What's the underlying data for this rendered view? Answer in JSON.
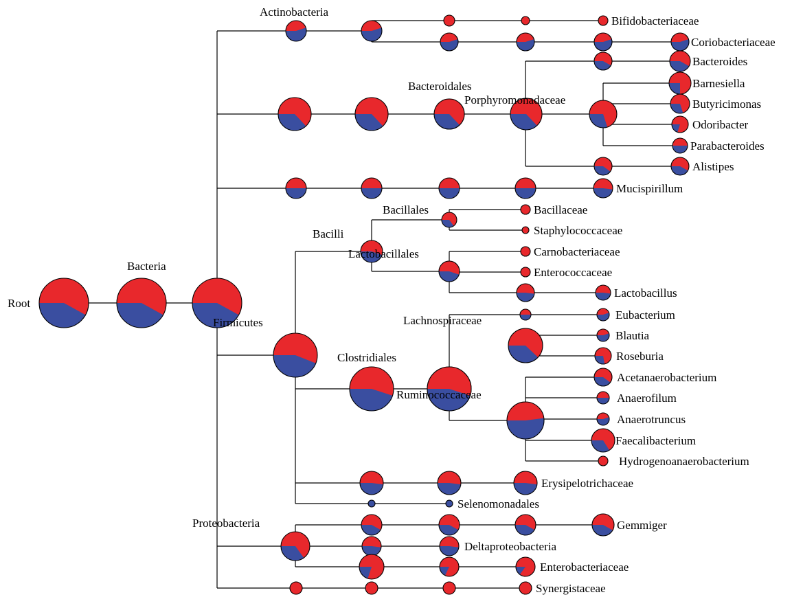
{
  "colors": {
    "primary": "#e8282c",
    "secondary": "#3a4ea0",
    "line": "#000000"
  },
  "nodes": [
    {
      "id": "root",
      "label": "Root",
      "share": 0.58
    },
    {
      "id": "bacteria",
      "label": "Bacteria",
      "share": 0.58
    },
    {
      "id": "phylum-hub",
      "label": "",
      "share": 0.58
    },
    {
      "id": "actino",
      "label": "Actinobacteria",
      "share": 0.45
    },
    {
      "id": "actino-2",
      "label": "",
      "share": 0.45
    },
    {
      "id": "bifido-1",
      "label": "",
      "share": 1.0
    },
    {
      "id": "bifido-2",
      "label": "",
      "share": 1.0
    },
    {
      "id": "bifidobacteriaceae",
      "label": "Bifidobacteriaceae",
      "share": 1.0
    },
    {
      "id": "corio-1",
      "label": "",
      "share": 0.45
    },
    {
      "id": "corio-2",
      "label": "",
      "share": 0.45
    },
    {
      "id": "corio-3",
      "label": "",
      "share": 0.45
    },
    {
      "id": "coriobacteriaceae",
      "label": "Coriobacteriaceae",
      "share": 0.45
    },
    {
      "id": "bacteroidetes",
      "label": "",
      "share": 0.63
    },
    {
      "id": "bacteroidia",
      "label": "",
      "share": 0.63
    },
    {
      "id": "bacteroidales",
      "label": "Bacteroidales",
      "share": 0.63
    },
    {
      "id": "porphyromonadaceae",
      "label": "Porphyromonadaceae",
      "share": 0.63
    },
    {
      "id": "bacteroides-1",
      "label": "",
      "share": 0.58
    },
    {
      "id": "bacteroides",
      "label": "Bacteroides",
      "share": 0.58
    },
    {
      "id": "porph-genus-hub",
      "label": "",
      "share": 0.7
    },
    {
      "id": "barnesiella",
      "label": "Barnesiella",
      "share": 0.75
    },
    {
      "id": "butyricimonas",
      "label": "Butyricimonas",
      "share": 0.7
    },
    {
      "id": "odoribacter",
      "label": "Odoribacter",
      "share": 0.8
    },
    {
      "id": "parabacteroides",
      "label": "Parabacteroides",
      "share": 0.5
    },
    {
      "id": "alistipes-1",
      "label": "",
      "share": 0.6
    },
    {
      "id": "alistipes",
      "label": "Alistipes",
      "share": 0.58
    },
    {
      "id": "deferri-1",
      "label": "",
      "share": 0.5
    },
    {
      "id": "deferri-2",
      "label": "",
      "share": 0.5
    },
    {
      "id": "deferri-3",
      "label": "",
      "share": 0.5
    },
    {
      "id": "deferri-4",
      "label": "",
      "share": 0.5
    },
    {
      "id": "mucispirillum",
      "label": "Mucispirillum",
      "share": 0.52
    },
    {
      "id": "firmicutes",
      "label": "Firmicutes",
      "share": 0.56
    },
    {
      "id": "bacilli",
      "label": "Bacilli",
      "share": 0.55
    },
    {
      "id": "bacillales",
      "label": "Bacillales",
      "share": 0.65
    },
    {
      "id": "bacillaceae",
      "label": "Bacillaceae",
      "share": 1.0
    },
    {
      "id": "staphylococcaceae",
      "label": "Staphylococcaceae",
      "share": 1.0
    },
    {
      "id": "lactobacillales",
      "label": "Lactobacillales",
      "share": 0.55
    },
    {
      "id": "carnobacteriaceae",
      "label": "Carnobacteriaceae",
      "share": 1.0
    },
    {
      "id": "enterococcaceae",
      "label": "Enterococcaceae",
      "share": 1.0
    },
    {
      "id": "lactobacillaceae",
      "label": "",
      "share": 0.52
    },
    {
      "id": "lactobacillus",
      "label": "Lactobacillus",
      "share": 0.52
    },
    {
      "id": "clostridia",
      "label": "",
      "share": 0.55
    },
    {
      "id": "clostridiales",
      "label": "Clostridiales",
      "share": 0.55
    },
    {
      "id": "clostridiales-hub",
      "label": "Ruminococcaceae",
      "share": 0.55
    },
    {
      "id": "lachnospiraceae-node",
      "label": "Lachnospiraceae",
      "share": 0.5
    },
    {
      "id": "eubacterium",
      "label": "Eubacterium",
      "share": 0.45
    },
    {
      "id": "lachno-genus-hub",
      "label": "",
      "share": 0.62
    },
    {
      "id": "blautia",
      "label": "Blautia",
      "share": 0.45
    },
    {
      "id": "roseburia",
      "label": "Roseburia",
      "share": 0.72
    },
    {
      "id": "rumino-genus-hub",
      "label": "",
      "share": 0.48
    },
    {
      "id": "acetanaerobacterium",
      "label": "Acetanaerobacterium",
      "share": 0.6
    },
    {
      "id": "anaerofilum",
      "label": "Anaerofilum",
      "share": 0.5
    },
    {
      "id": "anaerotruncus",
      "label": "Anaerotruncus",
      "share": 0.45
    },
    {
      "id": "faecalibacterium",
      "label": "Faecalibacterium",
      "share": 0.66
    },
    {
      "id": "hydrogenoanaerobacterium",
      "label": "Hydrogenoanaerobacterium",
      "share": 1.0
    },
    {
      "id": "erysip-1",
      "label": "",
      "share": 0.52
    },
    {
      "id": "erysip-2",
      "label": "",
      "share": 0.52
    },
    {
      "id": "erysipelotrichaceae",
      "label": "Erysipelotrichaceae",
      "share": 0.52
    },
    {
      "id": "seleno-1",
      "label": "",
      "share": 0.0
    },
    {
      "id": "selenomonadales",
      "label": "Selenomonadales",
      "share": 0.0
    },
    {
      "id": "proteobacteria",
      "label": "Proteobacteria",
      "share": 0.65
    },
    {
      "id": "gemmiger-1",
      "label": "",
      "share": 0.58
    },
    {
      "id": "gemmiger-2",
      "label": "",
      "share": 0.58
    },
    {
      "id": "gemmiger-3",
      "label": "",
      "share": 0.58
    },
    {
      "id": "gemmiger",
      "label": "Gemmiger",
      "share": 0.58
    },
    {
      "id": "delta-1",
      "label": "",
      "share": 0.52
    },
    {
      "id": "deltaproteobacteria",
      "label": "Deltaproteobacteria",
      "share": 0.52
    },
    {
      "id": "entero-1",
      "label": "",
      "share": 0.8
    },
    {
      "id": "entero-2",
      "label": "",
      "share": 0.82
    },
    {
      "id": "enterobacteriaceae",
      "label": "Enterobacteriaceae",
      "share": 0.85
    },
    {
      "id": "synergistetes",
      "label": "",
      "share": 1.0
    },
    {
      "id": "synergistia",
      "label": "",
      "share": 1.0
    },
    {
      "id": "synergistales",
      "label": "",
      "share": 1.0
    },
    {
      "id": "synergistaceae",
      "label": "Synergistaceae",
      "share": 1.0
    }
  ]
}
